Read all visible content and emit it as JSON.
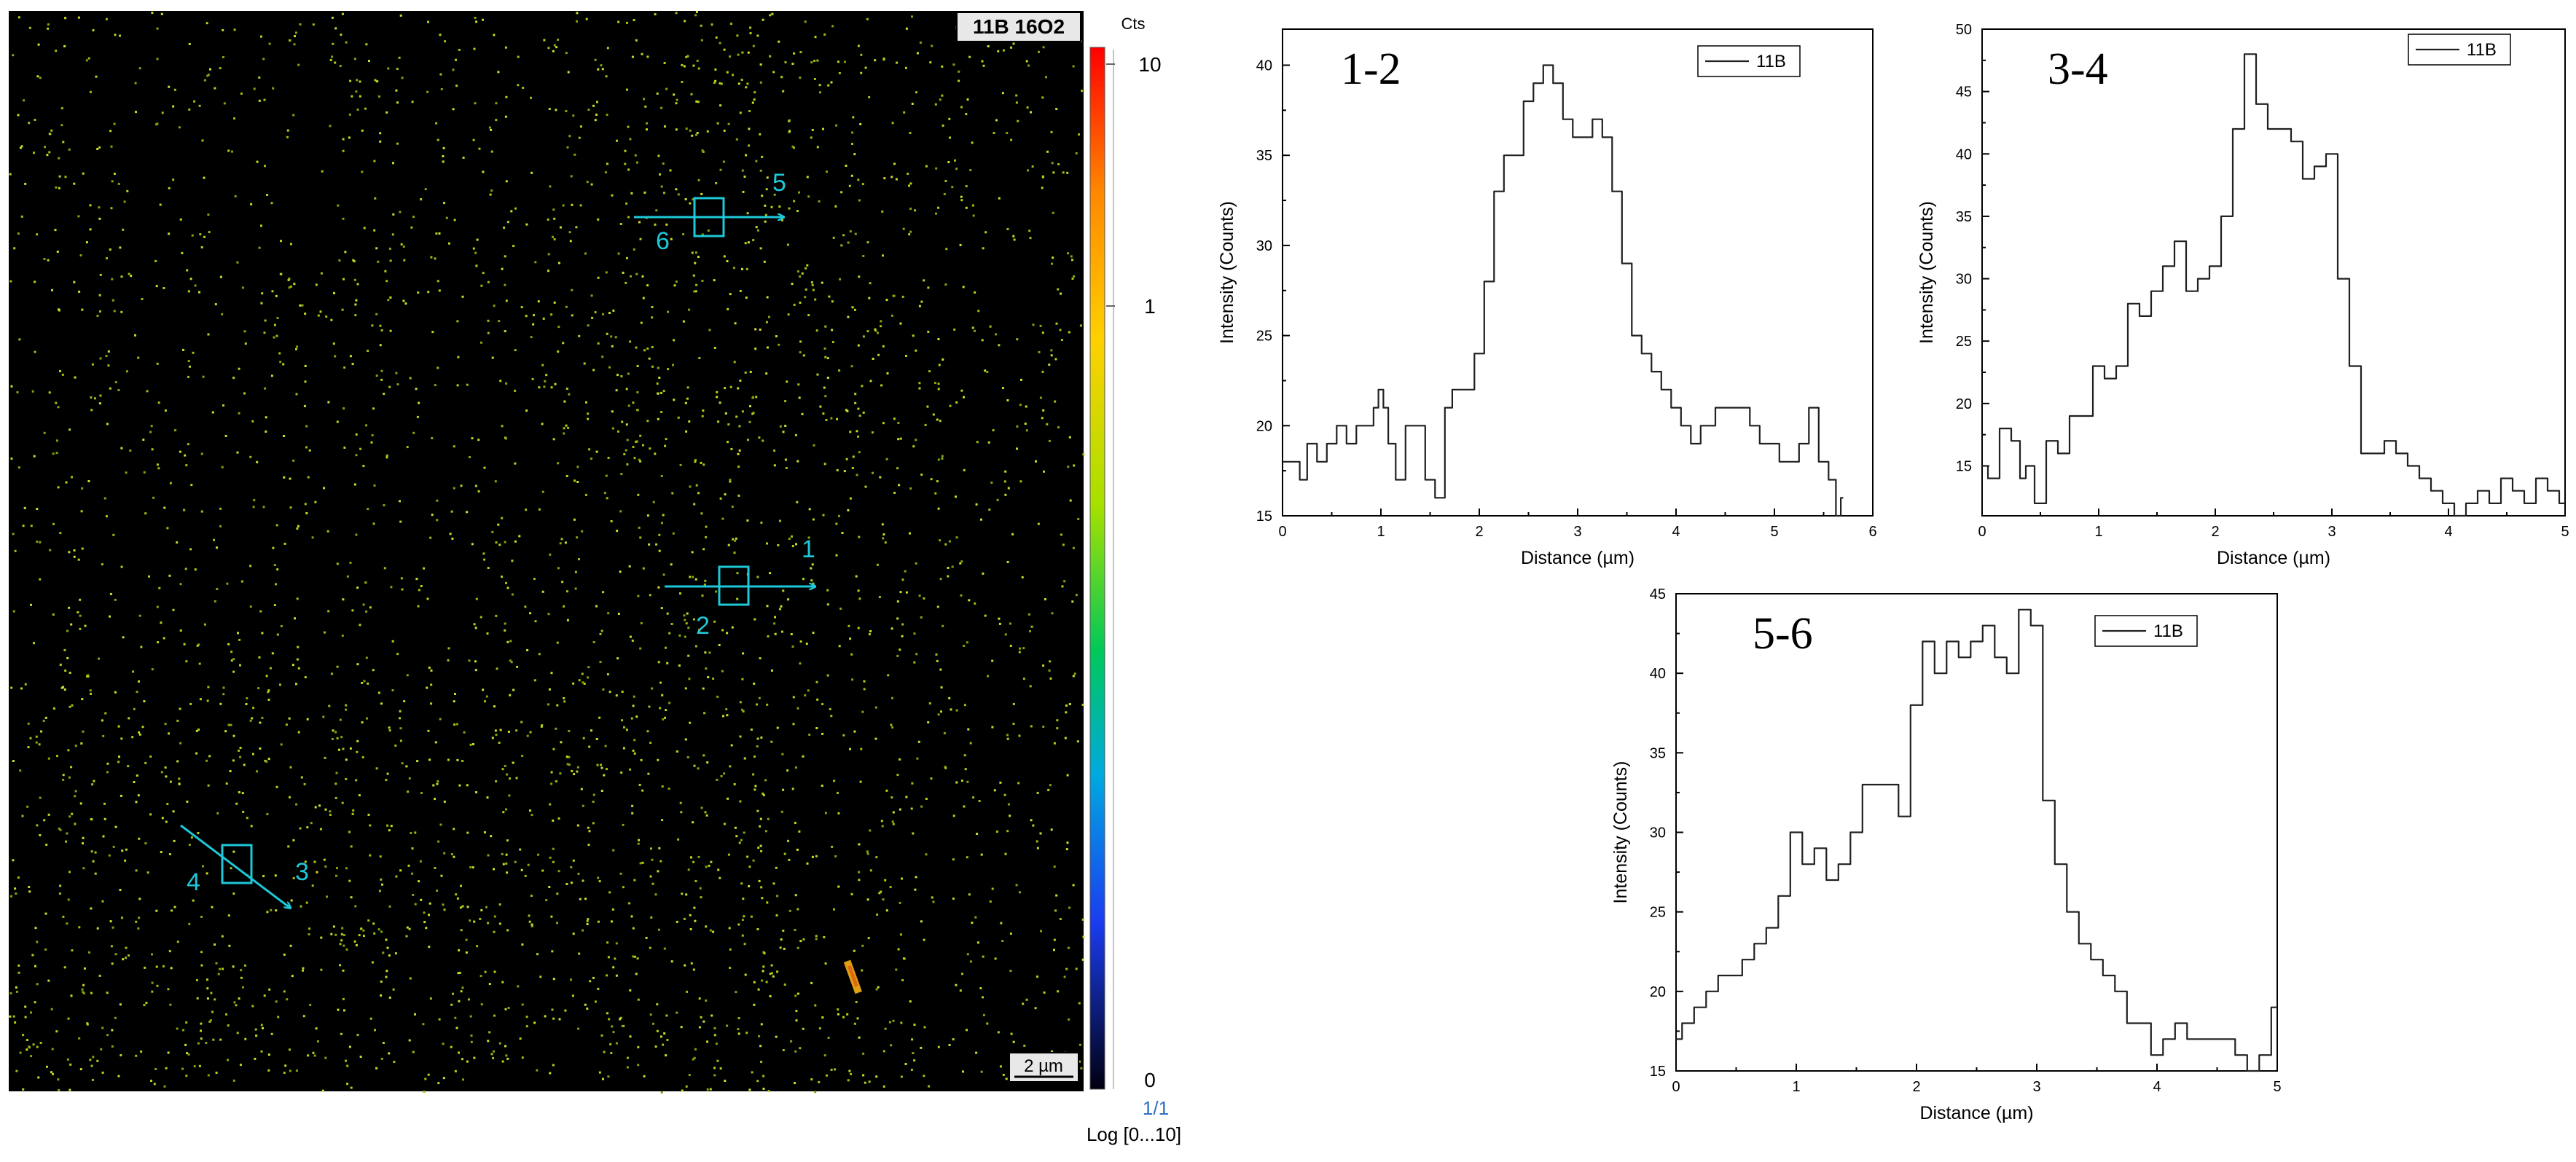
{
  "map": {
    "title": "11B 16O2",
    "scalebar": "2 µm",
    "colorbar": {
      "unit": "Cts",
      "max_label": "10",
      "mid_label": "1",
      "min_label": "0",
      "frame_label": "1/1",
      "scale_label": "Log [0...10]"
    },
    "markers": [
      "1",
      "2",
      "3",
      "4",
      "5",
      "6"
    ],
    "colors": {
      "background": "#000000",
      "dots": "#b8d418",
      "line_markers": "#1ec8d8"
    }
  },
  "chart_data": [
    {
      "type": "line",
      "title": "1-2",
      "xlabel": "Distance (µm)",
      "ylabel": "Intensity (Counts)",
      "xlim": [
        0,
        6
      ],
      "ylim": [
        15,
        42
      ],
      "xticks": [
        "0",
        "1",
        "2",
        "3",
        "4",
        "5",
        "6"
      ],
      "yticks": [
        "15",
        "20",
        "25",
        "30",
        "35",
        "40"
      ],
      "xtick_values": [
        0,
        1,
        2,
        3,
        4,
        5,
        6
      ],
      "ytick_values": [
        15,
        20,
        25,
        30,
        35,
        40
      ],
      "legend": "top-right",
      "series": [
        {
          "name": "11B",
          "x": [
            0,
            0.15,
            0.2,
            0.3,
            0.4,
            0.5,
            0.6,
            0.7,
            0.8,
            0.9,
            0.95,
            1.0,
            1.05,
            1.1,
            1.2,
            1.3,
            1.4,
            1.5,
            1.6,
            1.7,
            1.75,
            1.8,
            1.9,
            2.0,
            2.1,
            2.2,
            2.3,
            2.4,
            2.5,
            2.6,
            2.7,
            2.8,
            2.9,
            3.0,
            3.1,
            3.2,
            3.3,
            3.4,
            3.5,
            3.6,
            3.7,
            3.8,
            3.9,
            4.0,
            4.1,
            4.2,
            4.3,
            4.5,
            4.7,
            4.8,
            4.9,
            5.0,
            5.1,
            5.2,
            5.3,
            5.4,
            5.5,
            5.6,
            5.65,
            5.7
          ],
          "values": [
            18,
            18,
            17,
            19,
            18,
            19,
            20,
            19,
            20,
            20,
            21,
            22,
            21,
            19,
            17,
            20,
            20,
            17,
            16,
            21,
            22,
            22,
            22,
            24,
            28,
            33,
            35,
            35,
            38,
            39,
            40,
            39,
            37,
            36,
            36,
            37,
            36,
            33,
            29,
            25,
            24,
            23,
            22,
            21,
            20,
            19,
            20,
            21,
            21,
            20,
            19,
            19,
            18,
            18,
            19,
            21,
            18,
            17,
            15,
            16
          ]
        }
      ]
    },
    {
      "type": "line",
      "title": "3-4",
      "xlabel": "Distance (µm)",
      "ylabel": "Intensity (Counts)",
      "xlim": [
        0,
        5
      ],
      "ylim": [
        11,
        50
      ],
      "xticks": [
        "0",
        "1",
        "2",
        "3",
        "4",
        "5"
      ],
      "yticks": [
        "15",
        "20",
        "25",
        "30",
        "35",
        "40",
        "45",
        "50"
      ],
      "xtick_values": [
        0,
        1,
        2,
        3,
        4,
        5
      ],
      "ytick_values": [
        15,
        20,
        25,
        30,
        35,
        40,
        45,
        50
      ],
      "legend": "top-right",
      "series": [
        {
          "name": "11B",
          "x": [
            0,
            0.1,
            0.2,
            0.3,
            0.35,
            0.4,
            0.5,
            0.6,
            0.7,
            0.8,
            0.9,
            1.0,
            1.1,
            1.2,
            1.3,
            1.4,
            1.5,
            1.6,
            1.7,
            1.8,
            1.9,
            2.0,
            2.1,
            2.2,
            2.3,
            2.4,
            2.5,
            2.6,
            2.7,
            2.8,
            2.9,
            3.0,
            3.1,
            3.2,
            3.3,
            3.4,
            3.5,
            3.6,
            3.7,
            3.8,
            3.9,
            4.0,
            4.1,
            4.2,
            4.3,
            4.4,
            4.5,
            4.6,
            4.7,
            4.8,
            4.9,
            5.0
          ],
          "values": [
            15,
            14,
            18,
            17,
            14,
            15,
            12,
            17,
            16,
            19,
            19,
            23,
            22,
            23,
            28,
            27,
            29,
            31,
            33,
            29,
            30,
            31,
            35,
            42,
            48,
            44,
            42,
            42,
            41,
            38,
            39,
            40,
            30,
            23,
            16,
            16,
            17,
            16,
            15,
            14,
            13,
            12,
            11,
            12,
            13,
            12,
            14,
            13,
            12,
            14,
            13,
            12
          ]
        }
      ]
    },
    {
      "type": "line",
      "title": "5-6",
      "xlabel": "Distance (µm)",
      "ylabel": "Intensity (Counts)",
      "xlim": [
        0,
        5
      ],
      "ylim": [
        15,
        45
      ],
      "xticks": [
        "0",
        "1",
        "2",
        "3",
        "4",
        "5"
      ],
      "yticks": [
        "15",
        "20",
        "25",
        "30",
        "35",
        "40",
        "45"
      ],
      "xtick_values": [
        0,
        1,
        2,
        3,
        4,
        5
      ],
      "ytick_values": [
        15,
        20,
        25,
        30,
        35,
        40,
        45
      ],
      "legend": "top-right",
      "series": [
        {
          "name": "11B",
          "x": [
            0,
            0.1,
            0.2,
            0.3,
            0.4,
            0.5,
            0.6,
            0.7,
            0.8,
            0.9,
            1.0,
            1.1,
            1.2,
            1.3,
            1.4,
            1.5,
            1.6,
            1.7,
            1.8,
            1.9,
            2.0,
            2.1,
            2.2,
            2.3,
            2.4,
            2.5,
            2.6,
            2.7,
            2.8,
            2.9,
            3.0,
            3.1,
            3.2,
            3.3,
            3.4,
            3.5,
            3.6,
            3.7,
            3.8,
            3.9,
            4.0,
            4.1,
            4.2,
            4.3,
            4.4,
            4.5,
            4.6,
            4.7,
            4.8,
            4.9,
            5.0
          ],
          "values": [
            17,
            18,
            19,
            20,
            21,
            21,
            22,
            23,
            24,
            26,
            30,
            28,
            29,
            27,
            28,
            30,
            33,
            33,
            33,
            31,
            38,
            42,
            40,
            42,
            41,
            42,
            43,
            41,
            40,
            44,
            43,
            32,
            28,
            25,
            23,
            22,
            21,
            20,
            18,
            18,
            16,
            17,
            18,
            17,
            17,
            17,
            17,
            16,
            15,
            16,
            19
          ]
        }
      ]
    }
  ]
}
